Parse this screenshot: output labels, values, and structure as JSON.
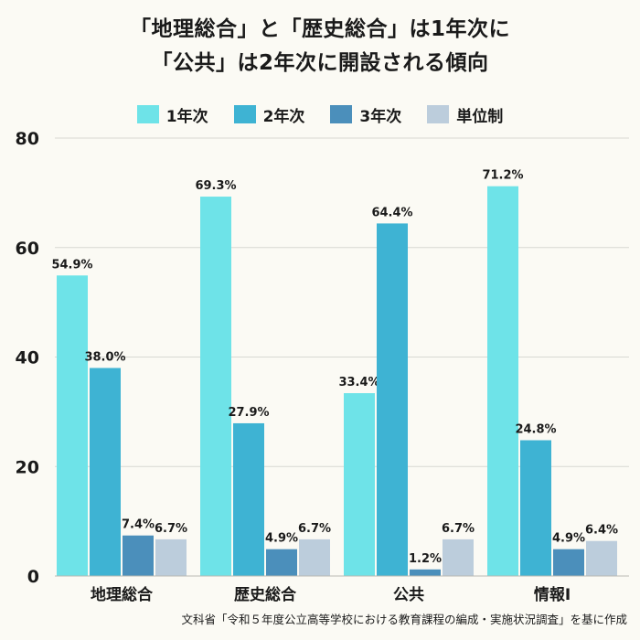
{
  "chart_data": {
    "type": "bar",
    "title_lines": [
      "「地理総合」と「歴史総合」は1年次に",
      "「公共」は2年次に開設される傾向"
    ],
    "categories": [
      "地理総合",
      "歴史総合",
      "公共",
      "情報Ⅰ"
    ],
    "series": [
      {
        "name": "1年次",
        "color": "#6ee3e8",
        "values": [
          54.9,
          69.3,
          33.4,
          71.2
        ]
      },
      {
        "name": "2年次",
        "color": "#3eb3d3",
        "values": [
          38.0,
          27.9,
          64.4,
          24.8
        ]
      },
      {
        "name": "3年次",
        "color": "#4b8fbb",
        "values": [
          7.4,
          4.9,
          1.2,
          4.9
        ]
      },
      {
        "name": "単位制",
        "color": "#bccddc",
        "values": [
          6.7,
          6.7,
          6.7,
          6.4
        ]
      }
    ],
    "value_labels": [
      [
        "54.9%",
        "69.3%",
        "33.4%",
        "71.2%"
      ],
      [
        "38.0%",
        "27.9%",
        "64.4%",
        "24.8%"
      ],
      [
        "7.4%",
        "4.9%",
        "1.2%",
        "4.9%"
      ],
      [
        "6.7%",
        "6.7%",
        "6.7%",
        "6.4%"
      ]
    ],
    "yticks": [
      0,
      20,
      40,
      60,
      80
    ],
    "ylim": [
      0,
      80
    ],
    "grid": true,
    "legend_position": "top-center",
    "xlabel": "",
    "ylabel": ""
  },
  "source_note": "文科省「令和５年度公立高等学校における教育課程の編成・実施状況調査」を基に作成"
}
